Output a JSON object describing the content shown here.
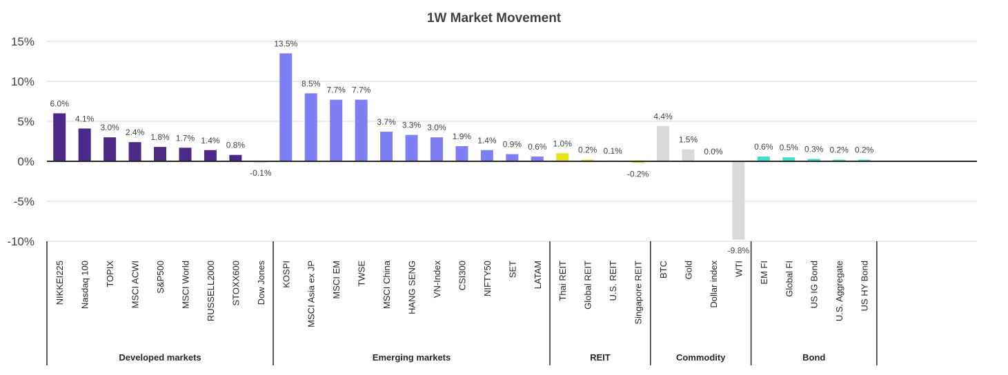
{
  "chart_data": {
    "type": "bar",
    "title": "1W Market Movement",
    "yticks": [
      "15%",
      "10%",
      "5%",
      "0%",
      "-5%",
      "-10%"
    ],
    "ylim": [
      -10,
      15
    ],
    "grid": true,
    "groups": [
      {
        "name": "Developed  markets",
        "color": "#4a2a86",
        "items": [
          {
            "label": "NIKKEI225",
            "value": 6.0,
            "text": "6.0%"
          },
          {
            "label": "Nasdaq 100",
            "value": 4.1,
            "text": "4.1%"
          },
          {
            "label": "TOPIX",
            "value": 3.0,
            "text": "3.0%"
          },
          {
            "label": "MSCI ACWI",
            "value": 2.4,
            "text": "2.4%"
          },
          {
            "label": "S&P500",
            "value": 1.8,
            "text": "1.8%"
          },
          {
            "label": "MSCI World",
            "value": 1.7,
            "text": "1.7%"
          },
          {
            "label": "RUSSELL2000",
            "value": 1.4,
            "text": "1.4%"
          },
          {
            "label": "STOXX600",
            "value": 0.8,
            "text": "0.8%"
          },
          {
            "label": "Dow Jones",
            "value": -0.1,
            "text": "-0.1%"
          }
        ]
      },
      {
        "name": "Emerging markets",
        "color": "#7f7ff5",
        "items": [
          {
            "label": "KOSPI",
            "value": 13.5,
            "text": "13.5%"
          },
          {
            "label": "MSCI Asia ex JP",
            "value": 8.5,
            "text": "8.5%"
          },
          {
            "label": "MSCI EM",
            "value": 7.7,
            "text": "7.7%"
          },
          {
            "label": "TWSE",
            "value": 7.7,
            "text": "7.7%"
          },
          {
            "label": "MSCI China",
            "value": 3.7,
            "text": "3.7%"
          },
          {
            "label": "HANG SENG",
            "value": 3.3,
            "text": "3.3%"
          },
          {
            "label": "VN-Index",
            "value": 3.0,
            "text": "3.0%"
          },
          {
            "label": "CSI300",
            "value": 1.9,
            "text": "1.9%"
          },
          {
            "label": "NIFTY50",
            "value": 1.4,
            "text": "1.4%"
          },
          {
            "label": "SET",
            "value": 0.9,
            "text": "0.9%"
          },
          {
            "label": "LATAM",
            "value": 0.6,
            "text": "0.6%"
          }
        ]
      },
      {
        "name": "REIT",
        "color": "#e6e21a",
        "items": [
          {
            "label": "Thai REIT",
            "value": 1.0,
            "text": "1.0%"
          },
          {
            "label": "Global REIT",
            "value": 0.2,
            "text": "0.2%"
          },
          {
            "label": "U.S. REIT",
            "value": 0.1,
            "text": "0.1%"
          },
          {
            "label": "Singapore REIT",
            "value": -0.2,
            "text": "-0.2%"
          }
        ]
      },
      {
        "name": "Commodity",
        "color": "#d9d9d9",
        "items": [
          {
            "label": "BTC",
            "value": 4.4,
            "text": "4.4%"
          },
          {
            "label": "Gold",
            "value": 1.5,
            "text": "1.5%"
          },
          {
            "label": "Dollar index",
            "value": 0.0,
            "text": "0.0%"
          },
          {
            "label": "WTI",
            "value": -9.8,
            "text": "-9.8%"
          }
        ]
      },
      {
        "name": "Bond",
        "color": "#40e0c8",
        "items": [
          {
            "label": "EM FI",
            "value": 0.6,
            "text": "0.6%"
          },
          {
            "label": "Global FI",
            "value": 0.5,
            "text": "0.5%"
          },
          {
            "label": "US IG Bond",
            "value": 0.3,
            "text": "0.3%"
          },
          {
            "label": "U.S. Aggregate",
            "value": 0.2,
            "text": "0.2%"
          },
          {
            "label": "US HY Bond",
            "value": 0.2,
            "text": "0.2%"
          }
        ]
      }
    ]
  }
}
